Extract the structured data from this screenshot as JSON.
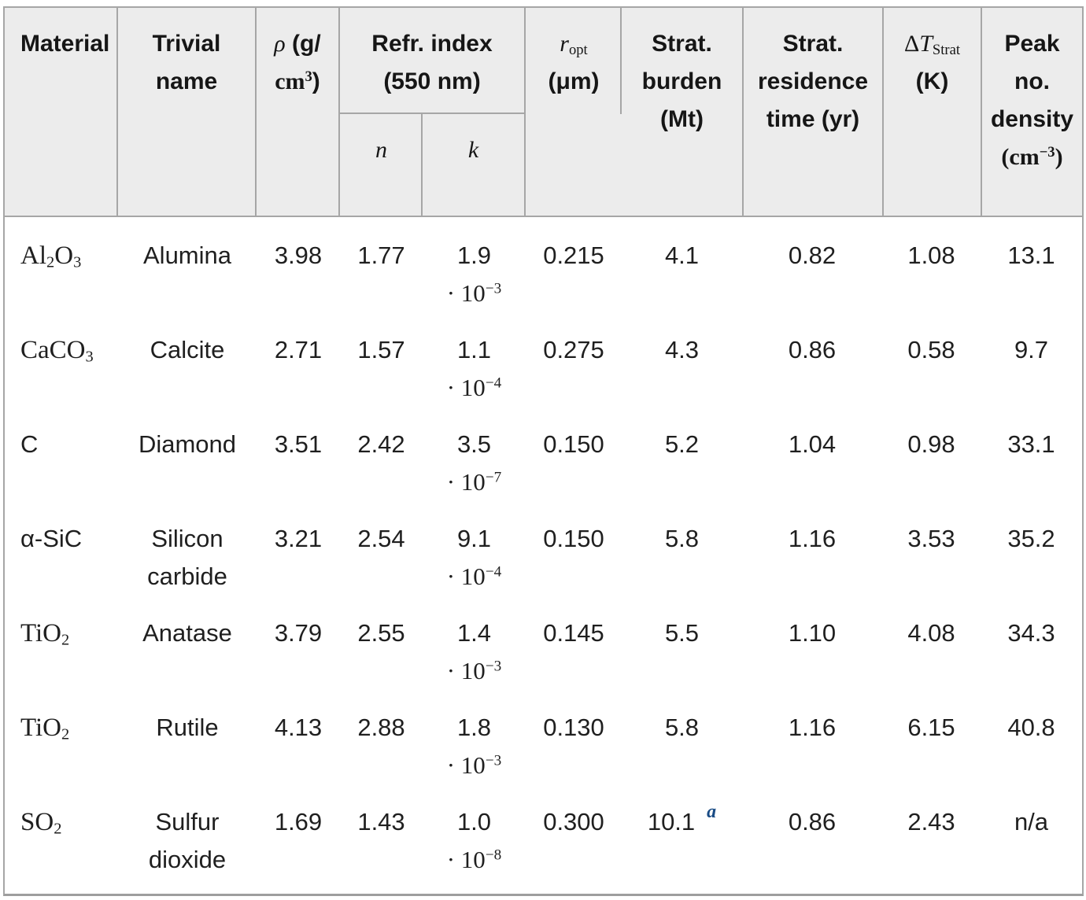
{
  "colors": {
    "footnote_link": "#1a4c85",
    "header_bg": "#ececec",
    "border": "#a6a6a6",
    "text": "#1f1f1f"
  },
  "table": {
    "columns": [
      {
        "key": "material"
      },
      {
        "key": "trivial"
      },
      {
        "key": "rho"
      },
      {
        "key": "n"
      },
      {
        "key": "k"
      },
      {
        "key": "ropt"
      },
      {
        "key": "burden"
      },
      {
        "key": "residence"
      },
      {
        "key": "dt"
      },
      {
        "key": "peak"
      }
    ],
    "header": {
      "material": [
        {
          "t": "Material"
        }
      ],
      "trivial": [
        {
          "t": "Trivial"
        },
        {
          "br": true
        },
        {
          "t": "name"
        }
      ],
      "rho": [
        {
          "t": "ρ",
          "cls": "mi"
        },
        {
          "t": " (g/"
        },
        {
          "br": true
        },
        {
          "t": "cm",
          "cls": "mbf"
        },
        {
          "t": "3",
          "sup": true,
          "cls": "mbf"
        },
        {
          "t": ")"
        }
      ],
      "refr": [
        {
          "t": "Refr. index"
        },
        {
          "br": true
        },
        {
          "t": "(550 nm)"
        }
      ],
      "n": [
        {
          "t": "n",
          "cls": "mi"
        }
      ],
      "k": [
        {
          "t": "k",
          "cls": "mi"
        }
      ],
      "ropt": [
        {
          "t": "r",
          "cls": "mi"
        },
        {
          "t": "opt",
          "sub": true,
          "cls": "mrm"
        },
        {
          "br": true
        },
        {
          "t": "(μm)"
        }
      ],
      "burden": [
        {
          "t": "Strat."
        },
        {
          "br": true
        },
        {
          "t": "burden"
        },
        {
          "br": true
        },
        {
          "t": "(Mt)"
        }
      ],
      "residence": [
        {
          "t": "Strat."
        },
        {
          "br": true
        },
        {
          "t": "residence"
        },
        {
          "br": true
        },
        {
          "t": "time (yr)"
        }
      ],
      "dt": [
        {
          "t": "Δ",
          "cls": "mrm"
        },
        {
          "t": "T",
          "cls": "mi"
        },
        {
          "t": "Strat",
          "sub": true,
          "cls": "mrm"
        },
        {
          "br": true
        },
        {
          "t": "(K)"
        }
      ],
      "peak": [
        {
          "t": "Peak"
        },
        {
          "br": true
        },
        {
          "t": "no."
        },
        {
          "br": true
        },
        {
          "t": "density"
        },
        {
          "br": true
        },
        {
          "t": "(cm",
          "cls": "mbf"
        },
        {
          "t": "−3",
          "sup": true,
          "cls": "mbf"
        },
        {
          "t": ")",
          "cls": "mbf"
        }
      ]
    },
    "rows": [
      {
        "material": [
          {
            "t": "Al"
          },
          {
            "t": "2",
            "sub": true
          },
          {
            "t": "O"
          },
          {
            "t": "3",
            "sub": true
          }
        ],
        "trivial": [
          {
            "t": "Alumina"
          }
        ],
        "rho": [
          {
            "t": "3.98"
          }
        ],
        "n": [
          {
            "t": "1.77"
          }
        ],
        "k": [
          {
            "t": "1.9"
          },
          {
            "br": true
          },
          {
            "t": "· 10",
            "cls": "mrm"
          },
          {
            "t": "−3",
            "sup": true,
            "cls": "mrm"
          }
        ],
        "ropt": [
          {
            "t": "0.215"
          }
        ],
        "burden": [
          {
            "t": "4.1"
          }
        ],
        "residence": [
          {
            "t": "0.82"
          }
        ],
        "dt": [
          {
            "t": "1.08"
          }
        ],
        "peak": [
          {
            "t": "13.1"
          }
        ]
      },
      {
        "material": [
          {
            "t": "CaCO"
          },
          {
            "t": "3",
            "sub": true
          }
        ],
        "trivial": [
          {
            "t": "Calcite"
          }
        ],
        "rho": [
          {
            "t": "2.71"
          }
        ],
        "n": [
          {
            "t": "1.57"
          }
        ],
        "k": [
          {
            "t": "1.1"
          },
          {
            "br": true
          },
          {
            "t": "· 10",
            "cls": "mrm"
          },
          {
            "t": "−4",
            "sup": true,
            "cls": "mrm"
          }
        ],
        "ropt": [
          {
            "t": "0.275"
          }
        ],
        "burden": [
          {
            "t": "4.3"
          }
        ],
        "residence": [
          {
            "t": "0.86"
          }
        ],
        "dt": [
          {
            "t": "0.58"
          }
        ],
        "peak": [
          {
            "t": "9.7"
          }
        ]
      },
      {
        "material": [
          {
            "t": "C",
            "cls": "sans"
          }
        ],
        "trivial": [
          {
            "t": "Diamond"
          }
        ],
        "rho": [
          {
            "t": "3.51"
          }
        ],
        "n": [
          {
            "t": "2.42"
          }
        ],
        "k": [
          {
            "t": "3.5"
          },
          {
            "br": true
          },
          {
            "t": "· 10",
            "cls": "mrm"
          },
          {
            "t": "−7",
            "sup": true,
            "cls": "mrm"
          }
        ],
        "ropt": [
          {
            "t": "0.150"
          }
        ],
        "burden": [
          {
            "t": "5.2"
          }
        ],
        "residence": [
          {
            "t": "1.04"
          }
        ],
        "dt": [
          {
            "t": "0.98"
          }
        ],
        "peak": [
          {
            "t": "33.1"
          }
        ]
      },
      {
        "material": [
          {
            "t": "α-SiC",
            "cls": "sans"
          }
        ],
        "trivial": [
          {
            "t": "Silicon carbide"
          }
        ],
        "rho": [
          {
            "t": "3.21"
          }
        ],
        "n": [
          {
            "t": "2.54"
          }
        ],
        "k": [
          {
            "t": "9.1"
          },
          {
            "br": true
          },
          {
            "t": "· 10",
            "cls": "mrm"
          },
          {
            "t": "−4",
            "sup": true,
            "cls": "mrm"
          }
        ],
        "ropt": [
          {
            "t": "0.150"
          }
        ],
        "burden": [
          {
            "t": "5.8"
          }
        ],
        "residence": [
          {
            "t": "1.16"
          }
        ],
        "dt": [
          {
            "t": "3.53"
          }
        ],
        "peak": [
          {
            "t": "35.2"
          }
        ]
      },
      {
        "material": [
          {
            "t": "TiO"
          },
          {
            "t": "2",
            "sub": true
          }
        ],
        "trivial": [
          {
            "t": "Anatase"
          }
        ],
        "rho": [
          {
            "t": "3.79"
          }
        ],
        "n": [
          {
            "t": "2.55"
          }
        ],
        "k": [
          {
            "t": "1.4"
          },
          {
            "br": true
          },
          {
            "t": "· 10",
            "cls": "mrm"
          },
          {
            "t": "−3",
            "sup": true,
            "cls": "mrm"
          }
        ],
        "ropt": [
          {
            "t": "0.145"
          }
        ],
        "burden": [
          {
            "t": "5.5"
          }
        ],
        "residence": [
          {
            "t": "1.10"
          }
        ],
        "dt": [
          {
            "t": "4.08"
          }
        ],
        "peak": [
          {
            "t": "34.3"
          }
        ]
      },
      {
        "material": [
          {
            "t": "TiO"
          },
          {
            "t": "2",
            "sub": true
          }
        ],
        "trivial": [
          {
            "t": "Rutile"
          }
        ],
        "rho": [
          {
            "t": "4.13"
          }
        ],
        "n": [
          {
            "t": "2.88"
          }
        ],
        "k": [
          {
            "t": "1.8"
          },
          {
            "br": true
          },
          {
            "t": "· 10",
            "cls": "mrm"
          },
          {
            "t": "−3",
            "sup": true,
            "cls": "mrm"
          }
        ],
        "ropt": [
          {
            "t": "0.130"
          }
        ],
        "burden": [
          {
            "t": "5.8"
          }
        ],
        "residence": [
          {
            "t": "1.16"
          }
        ],
        "dt": [
          {
            "t": "6.15"
          }
        ],
        "peak": [
          {
            "t": "40.8"
          }
        ]
      },
      {
        "material": [
          {
            "t": "SO"
          },
          {
            "t": "2",
            "sub": true
          }
        ],
        "trivial": [
          {
            "t": "Sulfur dioxide"
          }
        ],
        "rho": [
          {
            "t": "1.69"
          }
        ],
        "n": [
          {
            "t": "1.43"
          }
        ],
        "k": [
          {
            "t": "1.0"
          },
          {
            "br": true
          },
          {
            "t": "· 10",
            "cls": "mrm"
          },
          {
            "t": "−8",
            "sup": true,
            "cls": "mrm"
          }
        ],
        "ropt": [
          {
            "t": "0.300"
          }
        ],
        "burden": [
          {
            "t": "10.1"
          },
          {
            "t": "a",
            "sup": true,
            "cls": "fna",
            "name": "footnote-a-link",
            "inter": "true"
          }
        ],
        "residence": [
          {
            "t": "0.86"
          }
        ],
        "dt": [
          {
            "t": "2.43"
          }
        ],
        "peak": [
          {
            "t": "n/a"
          }
        ]
      }
    ]
  }
}
